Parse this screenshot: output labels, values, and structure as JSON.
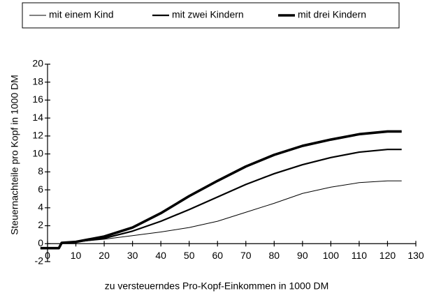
{
  "chart_data": {
    "type": "line",
    "xlabel": "zu versteuerndes Pro-Kopf-Einkommen in 1000 DM",
    "ylabel": "Steuernachteile pro Kopf in 1000 DM",
    "x": [
      -2.5,
      4,
      5,
      10,
      20,
      30,
      40,
      50,
      60,
      70,
      80,
      90,
      100,
      110,
      120,
      125
    ],
    "series": [
      {
        "name": "mit einem Kind",
        "color": "#000000",
        "width": 1,
        "values": [
          -0.5,
          -0.5,
          0.1,
          0.2,
          0.5,
          0.9,
          1.3,
          1.8,
          2.5,
          3.5,
          4.5,
          5.6,
          6.3,
          6.8,
          7.0,
          7.0
        ]
      },
      {
        "name": "mit zwei Kindern",
        "color": "#000000",
        "width": 2.2,
        "values": [
          -0.5,
          -0.5,
          0.1,
          0.2,
          0.6,
          1.4,
          2.5,
          3.8,
          5.2,
          6.6,
          7.8,
          8.8,
          9.6,
          10.2,
          10.5,
          10.5
        ]
      },
      {
        "name": "mit drei Kindern",
        "color": "#000000",
        "width": 3.6,
        "values": [
          -0.5,
          -0.5,
          0.1,
          0.2,
          0.8,
          1.8,
          3.4,
          5.3,
          7.0,
          8.6,
          9.9,
          10.9,
          11.6,
          12.2,
          12.5,
          12.5
        ]
      }
    ],
    "xlim": [
      -3,
      130
    ],
    "xticks": [
      0,
      10,
      20,
      30,
      40,
      50,
      60,
      70,
      80,
      90,
      100,
      110,
      120,
      130
    ],
    "ylim": [
      -2,
      20
    ],
    "yticks": [
      -2,
      0,
      2,
      4,
      6,
      8,
      10,
      12,
      14,
      16,
      18,
      20
    ],
    "legend": "top"
  }
}
